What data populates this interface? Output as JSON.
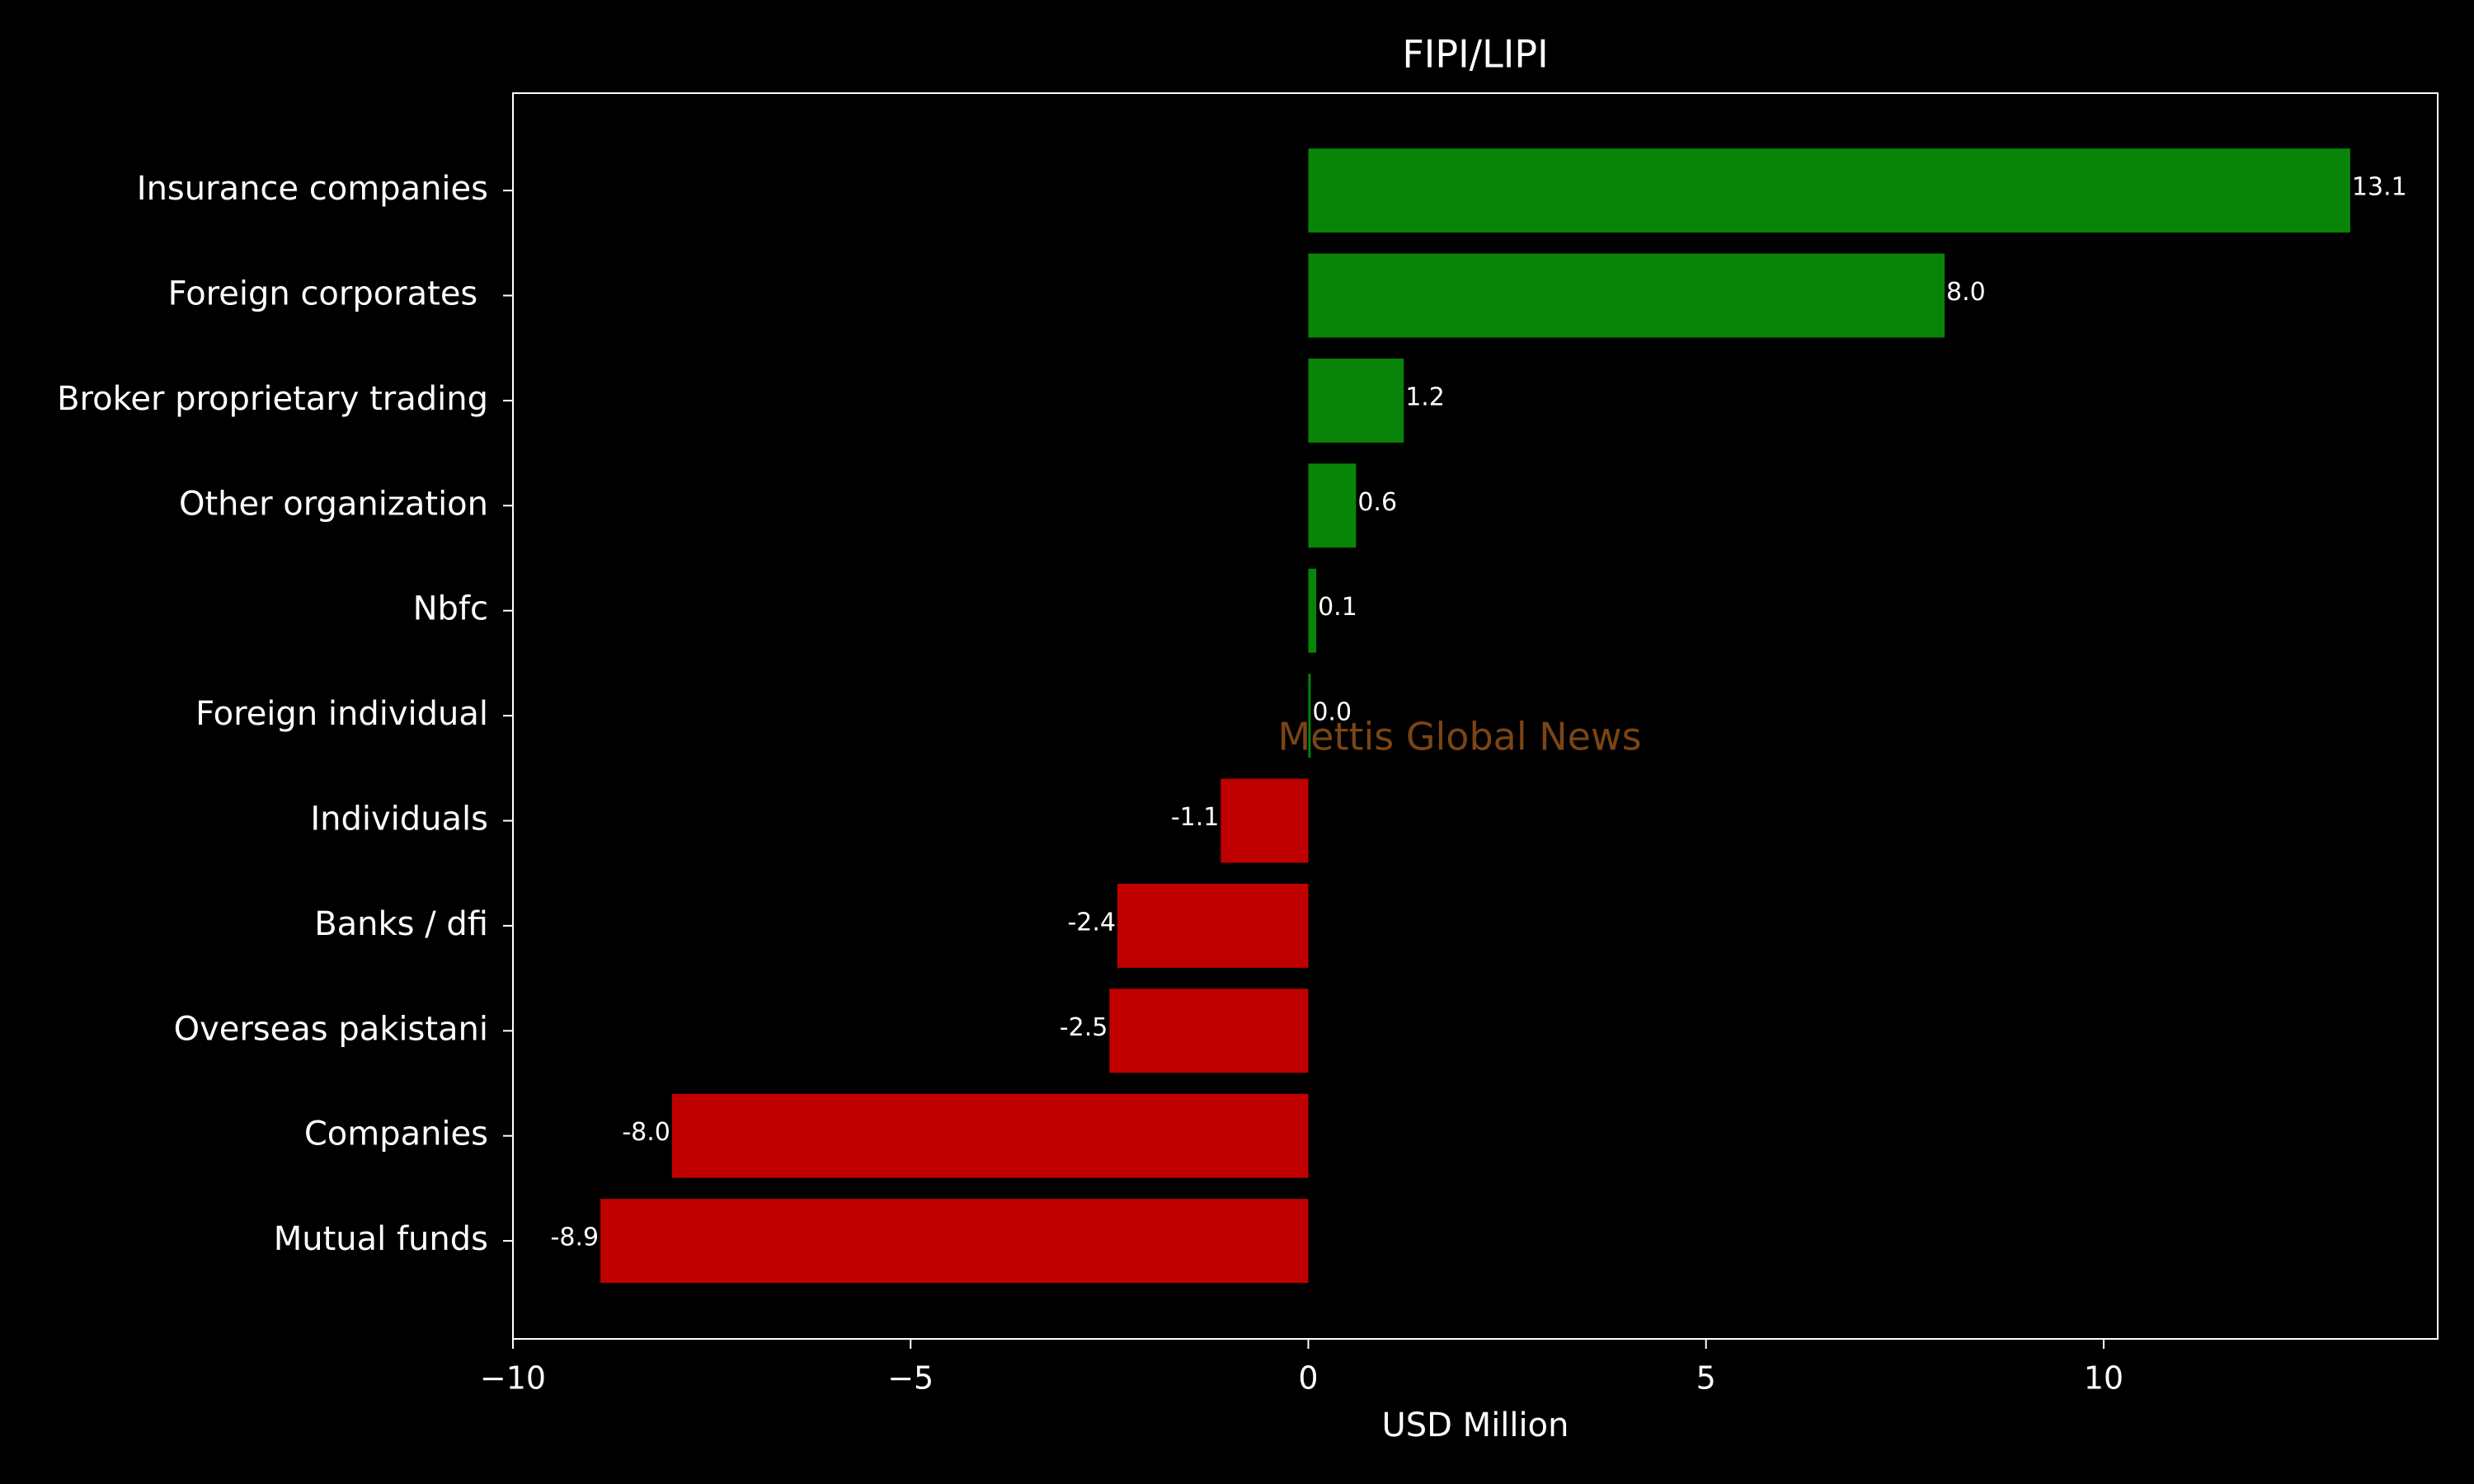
{
  "chart_data": {
    "type": "barh",
    "title": "FIPI/LIPI",
    "xlabel": "USD Million",
    "annotation": "Mettis Global News",
    "categories": [
      "Insurance companies",
      "Foreign corporates ",
      "Broker proprietary trading",
      "Other organization",
      "Nbfc",
      "Foreign individual",
      "Individuals",
      "Banks / dfi",
      "Overseas pakistani",
      "Companies",
      "Mutual funds"
    ],
    "values": [
      13.1,
      8.0,
      1.2,
      0.6,
      0.1,
      0.03,
      -1.1,
      -2.4,
      -2.5,
      -8.0,
      -8.9
    ],
    "value_labels": [
      "13.1",
      "8.0",
      "1.2",
      "0.6",
      "0.1",
      "0.0",
      "-1.1",
      "-2.4",
      "-2.5",
      "-8.0",
      "-8.9"
    ],
    "colors": [
      "#088508",
      "#088508",
      "#088508",
      "#088508",
      "#088508",
      "#088508",
      "#c00000",
      "#c00000",
      "#c00000",
      "#c00000",
      "#c00000"
    ],
    "xlim": [
      -10.0,
      14.2
    ],
    "xticks": [
      {
        "value": -10,
        "label": "−10"
      },
      {
        "value": -5,
        "label": "−5"
      },
      0,
      5,
      10
    ],
    "annotation_color": "#7a4514"
  }
}
